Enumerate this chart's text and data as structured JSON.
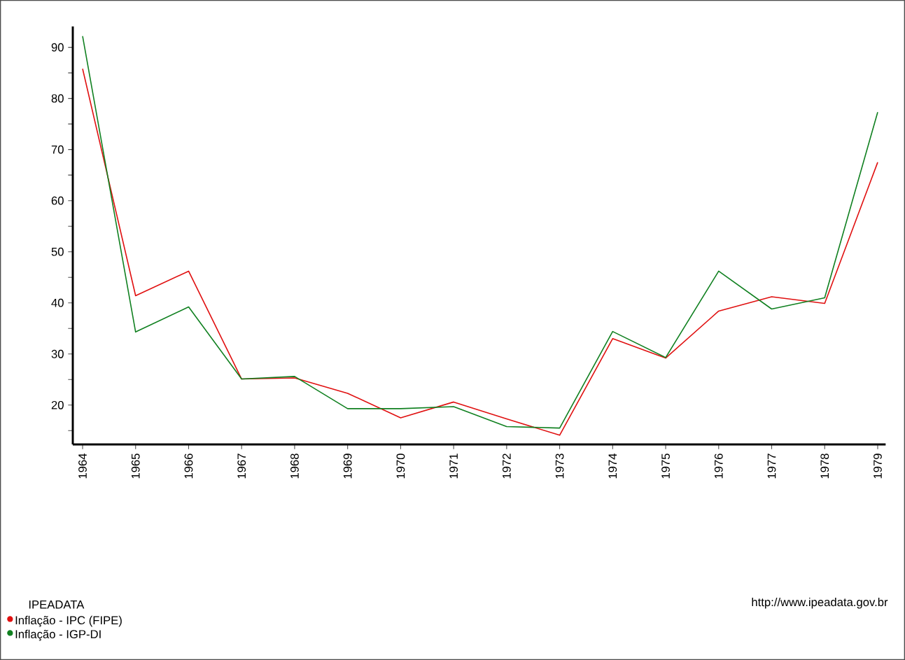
{
  "chart_data": {
    "type": "line",
    "categories": [
      "1964",
      "1965",
      "1966",
      "1967",
      "1968",
      "1969",
      "1970",
      "1971",
      "1972",
      "1973",
      "1974",
      "1975",
      "1976",
      "1977",
      "1978",
      "1979"
    ],
    "series": [
      {
        "name": "Inflação - IPC (FIPE)",
        "color": "#e01010",
        "values": [
          85.8,
          41.4,
          46.2,
          25.1,
          25.3,
          22.3,
          17.5,
          20.6,
          17.3,
          14.1,
          33.0,
          29.2,
          38.4,
          41.2,
          39.9,
          67.5
        ]
      },
      {
        "name": "Inflação - IGP-DI",
        "color": "#108020",
        "values": [
          92.2,
          34.3,
          39.2,
          25.1,
          25.6,
          19.3,
          19.3,
          19.7,
          15.8,
          15.5,
          34.4,
          29.3,
          46.2,
          38.8,
          41.0,
          77.3
        ]
      }
    ],
    "ylim": [
      12.3,
      94.1
    ],
    "yticks": [
      {
        "value": 15,
        "label": null
      },
      20,
      {
        "value": 25,
        "label": null
      },
      30,
      {
        "value": 35,
        "label": null
      },
      40,
      {
        "value": 45,
        "label": null
      },
      50,
      {
        "value": 55,
        "label": null
      },
      60,
      {
        "value": 65,
        "label": null
      },
      70,
      {
        "value": 75,
        "label": null
      },
      80,
      {
        "value": 85,
        "label": null
      },
      90
    ],
    "legend_title": "IPEADATA",
    "legend": "bottom left",
    "annotations": [
      "http://www.ipeadata.gov.br"
    ],
    "grid": false,
    "marker": "none",
    "line_style": "solid"
  }
}
